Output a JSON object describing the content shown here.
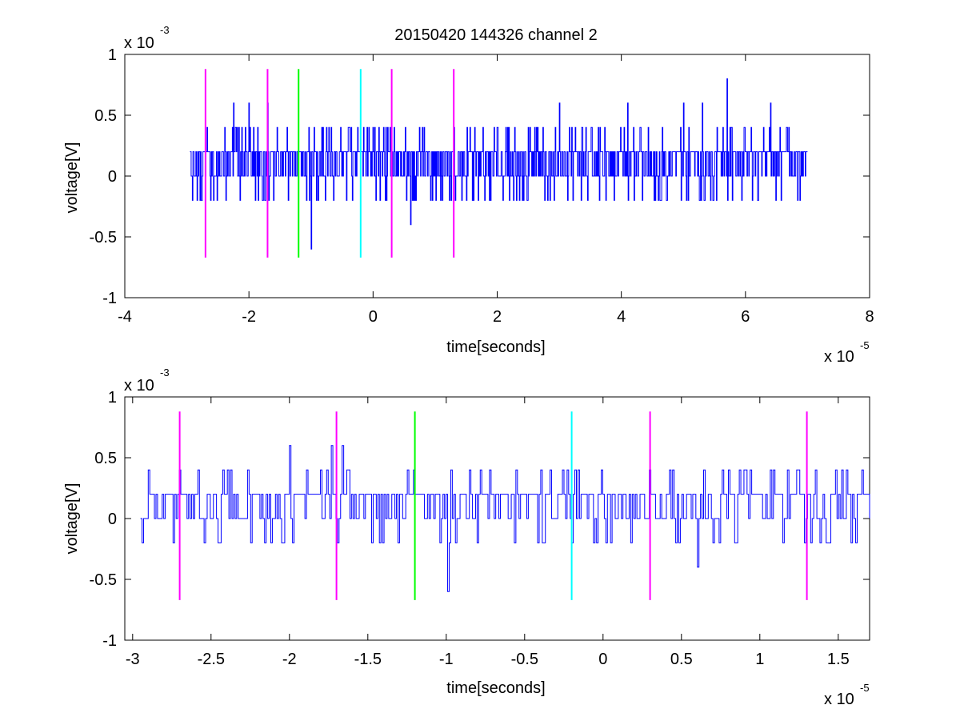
{
  "figure": {
    "title": "20150420 144326 channel 2"
  },
  "chart_data": [
    {
      "type": "line",
      "xlabel": "time[seconds]",
      "ylabel": "voltage[V]",
      "x_multiplier": "x 10",
      "x_exponent": "-5",
      "y_multiplier": "x 10",
      "y_exponent": "-3",
      "xlim": [
        -4,
        8
      ],
      "ylim": [
        -1,
        1
      ],
      "xticks": [
        -4,
        -2,
        0,
        2,
        4,
        6,
        8
      ],
      "xtick_labels": [
        "-4",
        "-2",
        "0",
        "2",
        "4",
        "6",
        "8"
      ],
      "yticks": [
        -1,
        -0.5,
        0,
        0.5,
        1
      ],
      "ytick_labels": [
        "-1",
        "-0.5",
        "0",
        "0.5",
        "1"
      ],
      "grid": false,
      "signal": {
        "color": "#0000ff",
        "x_start": -2.95,
        "x_end": 7.0,
        "levels": [
          -0.6,
          -0.4,
          -0.2,
          0,
          0.2,
          0.4,
          0.6,
          0.8
        ],
        "baseline_values": [
          0,
          0.2
        ],
        "peaks": [
          {
            "x": -2.25,
            "y": 0.6
          },
          {
            "x": -2.0,
            "y": 0.6
          },
          {
            "x": -1.7,
            "y": 0.6
          },
          {
            "x": -1.0,
            "y": -0.6
          },
          {
            "x": 0.6,
            "y": -0.4
          },
          {
            "x": 3.0,
            "y": 0.6
          },
          {
            "x": 4.1,
            "y": 0.6
          },
          {
            "x": 5.0,
            "y": 0.6
          },
          {
            "x": 5.3,
            "y": 0.6
          },
          {
            "x": 5.7,
            "y": 0.8
          },
          {
            "x": 6.4,
            "y": 0.6
          }
        ]
      },
      "markers": [
        {
          "x": -2.7,
          "color": "#ff00ff",
          "y_range": [
            -0.67,
            0.88
          ]
        },
        {
          "x": -1.7,
          "color": "#ff00ff",
          "y_range": [
            -0.67,
            0.88
          ]
        },
        {
          "x": -1.2,
          "color": "#00ff00",
          "y_range": [
            -0.67,
            0.88
          ]
        },
        {
          "x": -0.2,
          "color": "#00ffff",
          "y_range": [
            -0.67,
            0.88
          ]
        },
        {
          "x": 0.3,
          "color": "#ff00ff",
          "y_range": [
            -0.67,
            0.88
          ]
        },
        {
          "x": 1.3,
          "color": "#ff00ff",
          "y_range": [
            -0.67,
            0.88
          ]
        }
      ]
    },
    {
      "type": "line",
      "xlabel": "time[seconds]",
      "ylabel": "voltage[V]",
      "x_multiplier": "x 10",
      "x_exponent": "-5",
      "y_multiplier": "x 10",
      "y_exponent": "-3",
      "xlim": [
        -3.05,
        1.7
      ],
      "ylim": [
        -1,
        1
      ],
      "xticks": [
        -3,
        -2.5,
        -2,
        -1.5,
        -1,
        -0.5,
        0,
        0.5,
        1,
        1.5
      ],
      "xtick_labels": [
        "-3",
        "-2.5",
        "-2",
        "-1.5",
        "-1",
        "-0.5",
        "0",
        "0.5",
        "1",
        "1.5"
      ],
      "yticks": [
        -1,
        -0.5,
        0,
        0.5,
        1
      ],
      "ytick_labels": [
        "-1",
        "-0.5",
        "0",
        "0.5",
        "1"
      ],
      "grid": false,
      "signal": {
        "color": "#0000ff",
        "x_start": -2.95,
        "x_end": 1.7,
        "levels": [
          -0.6,
          -0.4,
          -0.2,
          0,
          0.2,
          0.4,
          0.6
        ],
        "baseline_values": [
          0,
          0.2
        ],
        "peaks": [
          {
            "x": -2.94,
            "y": -0.2
          },
          {
            "x": -2.9,
            "y": 0.4
          },
          {
            "x": -2.45,
            "y": -0.2
          },
          {
            "x": -2.0,
            "y": 0.6
          },
          {
            "x": -1.73,
            "y": 0.6
          },
          {
            "x": -1.66,
            "y": 0.6
          },
          {
            "x": -1.25,
            "y": 0.4
          },
          {
            "x": -0.99,
            "y": -0.6
          },
          {
            "x": -0.2,
            "y": -0.2
          },
          {
            "x": 0.6,
            "y": -0.4
          },
          {
            "x": 1.24,
            "y": 0.4
          }
        ]
      },
      "markers": [
        {
          "x": -2.7,
          "color": "#ff00ff",
          "y_range": [
            -0.67,
            0.88
          ]
        },
        {
          "x": -1.7,
          "color": "#ff00ff",
          "y_range": [
            -0.67,
            0.88
          ]
        },
        {
          "x": -1.2,
          "color": "#00ff00",
          "y_range": [
            -0.67,
            0.88
          ]
        },
        {
          "x": -0.2,
          "color": "#00ffff",
          "y_range": [
            -0.67,
            0.88
          ]
        },
        {
          "x": 0.3,
          "color": "#ff00ff",
          "y_range": [
            -0.67,
            0.88
          ]
        },
        {
          "x": 1.3,
          "color": "#ff00ff",
          "y_range": [
            -0.67,
            0.88
          ]
        }
      ]
    }
  ]
}
